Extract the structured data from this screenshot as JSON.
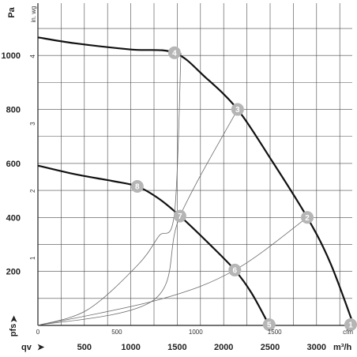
{
  "chart_data": {
    "type": "line",
    "x_axis": {
      "label": "qv",
      "unit": "m³/h",
      "ticks": [
        500,
        1000,
        1500,
        2000,
        2500,
        3000
      ],
      "range": [
        0,
        3400
      ],
      "secondary_unit": "cfm",
      "secondary_ticks": [
        0,
        500,
        1000,
        1500
      ]
    },
    "y_axis": {
      "label": "pfs",
      "unit": "Pa",
      "ticks": [
        200,
        400,
        600,
        800,
        1000
      ],
      "range": [
        0,
        1100
      ],
      "secondary_unit": "in. wg",
      "secondary_ticks": [
        1,
        2,
        3,
        4
      ]
    },
    "grid": true,
    "series": [
      {
        "id": "fan-curve-high",
        "style": "bold",
        "points": [
          [
            0,
            1067
          ],
          [
            400,
            1045
          ],
          [
            1000,
            1022
          ],
          [
            1470,
            1010
          ],
          [
            1800,
            920
          ],
          [
            2150,
            800
          ],
          [
            2500,
            620
          ],
          [
            2900,
            400
          ],
          [
            3150,
            230
          ],
          [
            3400,
            0
          ]
        ]
      },
      {
        "id": "fan-curve-low",
        "style": "bold",
        "points": [
          [
            0,
            592
          ],
          [
            400,
            560
          ],
          [
            800,
            535
          ],
          [
            1070,
            515
          ],
          [
            1300,
            470
          ],
          [
            1530,
            405
          ],
          [
            1850,
            300
          ],
          [
            2120,
            205
          ],
          [
            2300,
            120
          ],
          [
            2490,
            0
          ]
        ]
      },
      {
        "id": "system-curve-1",
        "style": "thin",
        "points": [
          [
            0,
            0
          ],
          [
            530,
            57
          ],
          [
            1070,
            222
          ],
          [
            1300,
            330
          ],
          [
            1470,
            415
          ],
          [
            1540,
            1010
          ]
        ]
      },
      {
        "id": "system-curve-2",
        "style": "thin",
        "points": [
          [
            0,
            0
          ],
          [
            1250,
            95
          ],
          [
            1530,
            405
          ],
          [
            2150,
            800
          ]
        ]
      },
      {
        "id": "system-curve-3",
        "style": "thin",
        "points": [
          [
            0,
            0
          ],
          [
            1300,
            95
          ],
          [
            2120,
            205
          ],
          [
            2900,
            400
          ]
        ]
      }
    ],
    "markers": [
      {
        "label": "1",
        "x": 3400,
        "y": 0
      },
      {
        "label": "2",
        "x": 2900,
        "y": 400
      },
      {
        "label": "3",
        "x": 2150,
        "y": 800
      },
      {
        "label": "4",
        "x": 1470,
        "y": 1010
      },
      {
        "label": "5",
        "x": 2490,
        "y": 0
      },
      {
        "label": "6",
        "x": 2120,
        "y": 205
      },
      {
        "label": "7",
        "x": 1530,
        "y": 405
      },
      {
        "label": "8",
        "x": 1070,
        "y": 515
      }
    ]
  },
  "labels": {
    "y_unit": "Pa",
    "y_secondary_unit": "in. wg",
    "x_label": "qv",
    "x_unit": "m³/h",
    "x_secondary_unit": "cfm",
    "y_label": "pfs",
    "arrow": "➤"
  }
}
